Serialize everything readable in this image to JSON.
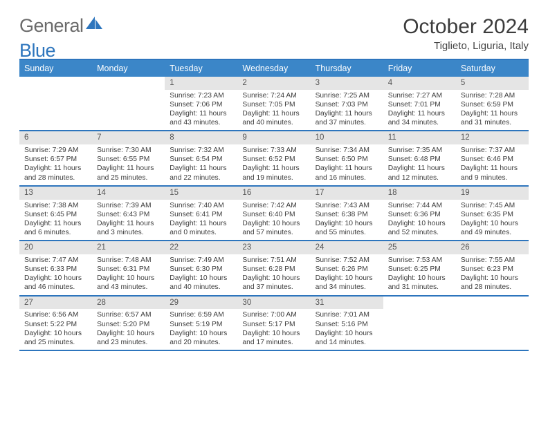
{
  "brand": {
    "part1": "General",
    "part2": "Blue"
  },
  "title": "October 2024",
  "location": "Tiglieto, Liguria, Italy",
  "theme": {
    "accent": "#2d75bd",
    "header_bg": "#3b86c8",
    "header_fg": "#ffffff",
    "daynum_bg": "#e5e5e5",
    "text": "#3c3c3c",
    "rule": "#2d75bd"
  },
  "day_headers": [
    "Sunday",
    "Monday",
    "Tuesday",
    "Wednesday",
    "Thursday",
    "Friday",
    "Saturday"
  ],
  "weeks": [
    [
      {
        "empty": true
      },
      {
        "empty": true
      },
      {
        "num": "1",
        "sunrise": "7:23 AM",
        "sunset": "7:06 PM",
        "daylight": "11 hours and 43 minutes."
      },
      {
        "num": "2",
        "sunrise": "7:24 AM",
        "sunset": "7:05 PM",
        "daylight": "11 hours and 40 minutes."
      },
      {
        "num": "3",
        "sunrise": "7:25 AM",
        "sunset": "7:03 PM",
        "daylight": "11 hours and 37 minutes."
      },
      {
        "num": "4",
        "sunrise": "7:27 AM",
        "sunset": "7:01 PM",
        "daylight": "11 hours and 34 minutes."
      },
      {
        "num": "5",
        "sunrise": "7:28 AM",
        "sunset": "6:59 PM",
        "daylight": "11 hours and 31 minutes."
      }
    ],
    [
      {
        "num": "6",
        "sunrise": "7:29 AM",
        "sunset": "6:57 PM",
        "daylight": "11 hours and 28 minutes."
      },
      {
        "num": "7",
        "sunrise": "7:30 AM",
        "sunset": "6:55 PM",
        "daylight": "11 hours and 25 minutes."
      },
      {
        "num": "8",
        "sunrise": "7:32 AM",
        "sunset": "6:54 PM",
        "daylight": "11 hours and 22 minutes."
      },
      {
        "num": "9",
        "sunrise": "7:33 AM",
        "sunset": "6:52 PM",
        "daylight": "11 hours and 19 minutes."
      },
      {
        "num": "10",
        "sunrise": "7:34 AM",
        "sunset": "6:50 PM",
        "daylight": "11 hours and 16 minutes."
      },
      {
        "num": "11",
        "sunrise": "7:35 AM",
        "sunset": "6:48 PM",
        "daylight": "11 hours and 12 minutes."
      },
      {
        "num": "12",
        "sunrise": "7:37 AM",
        "sunset": "6:46 PM",
        "daylight": "11 hours and 9 minutes."
      }
    ],
    [
      {
        "num": "13",
        "sunrise": "7:38 AM",
        "sunset": "6:45 PM",
        "daylight": "11 hours and 6 minutes."
      },
      {
        "num": "14",
        "sunrise": "7:39 AM",
        "sunset": "6:43 PM",
        "daylight": "11 hours and 3 minutes."
      },
      {
        "num": "15",
        "sunrise": "7:40 AM",
        "sunset": "6:41 PM",
        "daylight": "11 hours and 0 minutes."
      },
      {
        "num": "16",
        "sunrise": "7:42 AM",
        "sunset": "6:40 PM",
        "daylight": "10 hours and 57 minutes."
      },
      {
        "num": "17",
        "sunrise": "7:43 AM",
        "sunset": "6:38 PM",
        "daylight": "10 hours and 55 minutes."
      },
      {
        "num": "18",
        "sunrise": "7:44 AM",
        "sunset": "6:36 PM",
        "daylight": "10 hours and 52 minutes."
      },
      {
        "num": "19",
        "sunrise": "7:45 AM",
        "sunset": "6:35 PM",
        "daylight": "10 hours and 49 minutes."
      }
    ],
    [
      {
        "num": "20",
        "sunrise": "7:47 AM",
        "sunset": "6:33 PM",
        "daylight": "10 hours and 46 minutes."
      },
      {
        "num": "21",
        "sunrise": "7:48 AM",
        "sunset": "6:31 PM",
        "daylight": "10 hours and 43 minutes."
      },
      {
        "num": "22",
        "sunrise": "7:49 AM",
        "sunset": "6:30 PM",
        "daylight": "10 hours and 40 minutes."
      },
      {
        "num": "23",
        "sunrise": "7:51 AM",
        "sunset": "6:28 PM",
        "daylight": "10 hours and 37 minutes."
      },
      {
        "num": "24",
        "sunrise": "7:52 AM",
        "sunset": "6:26 PM",
        "daylight": "10 hours and 34 minutes."
      },
      {
        "num": "25",
        "sunrise": "7:53 AM",
        "sunset": "6:25 PM",
        "daylight": "10 hours and 31 minutes."
      },
      {
        "num": "26",
        "sunrise": "7:55 AM",
        "sunset": "6:23 PM",
        "daylight": "10 hours and 28 minutes."
      }
    ],
    [
      {
        "num": "27",
        "sunrise": "6:56 AM",
        "sunset": "5:22 PM",
        "daylight": "10 hours and 25 minutes."
      },
      {
        "num": "28",
        "sunrise": "6:57 AM",
        "sunset": "5:20 PM",
        "daylight": "10 hours and 23 minutes."
      },
      {
        "num": "29",
        "sunrise": "6:59 AM",
        "sunset": "5:19 PM",
        "daylight": "10 hours and 20 minutes."
      },
      {
        "num": "30",
        "sunrise": "7:00 AM",
        "sunset": "5:17 PM",
        "daylight": "10 hours and 17 minutes."
      },
      {
        "num": "31",
        "sunrise": "7:01 AM",
        "sunset": "5:16 PM",
        "daylight": "10 hours and 14 minutes."
      },
      {
        "empty": true
      },
      {
        "empty": true
      }
    ]
  ],
  "labels": {
    "sunrise": "Sunrise:",
    "sunset": "Sunset:",
    "daylight": "Daylight:"
  }
}
